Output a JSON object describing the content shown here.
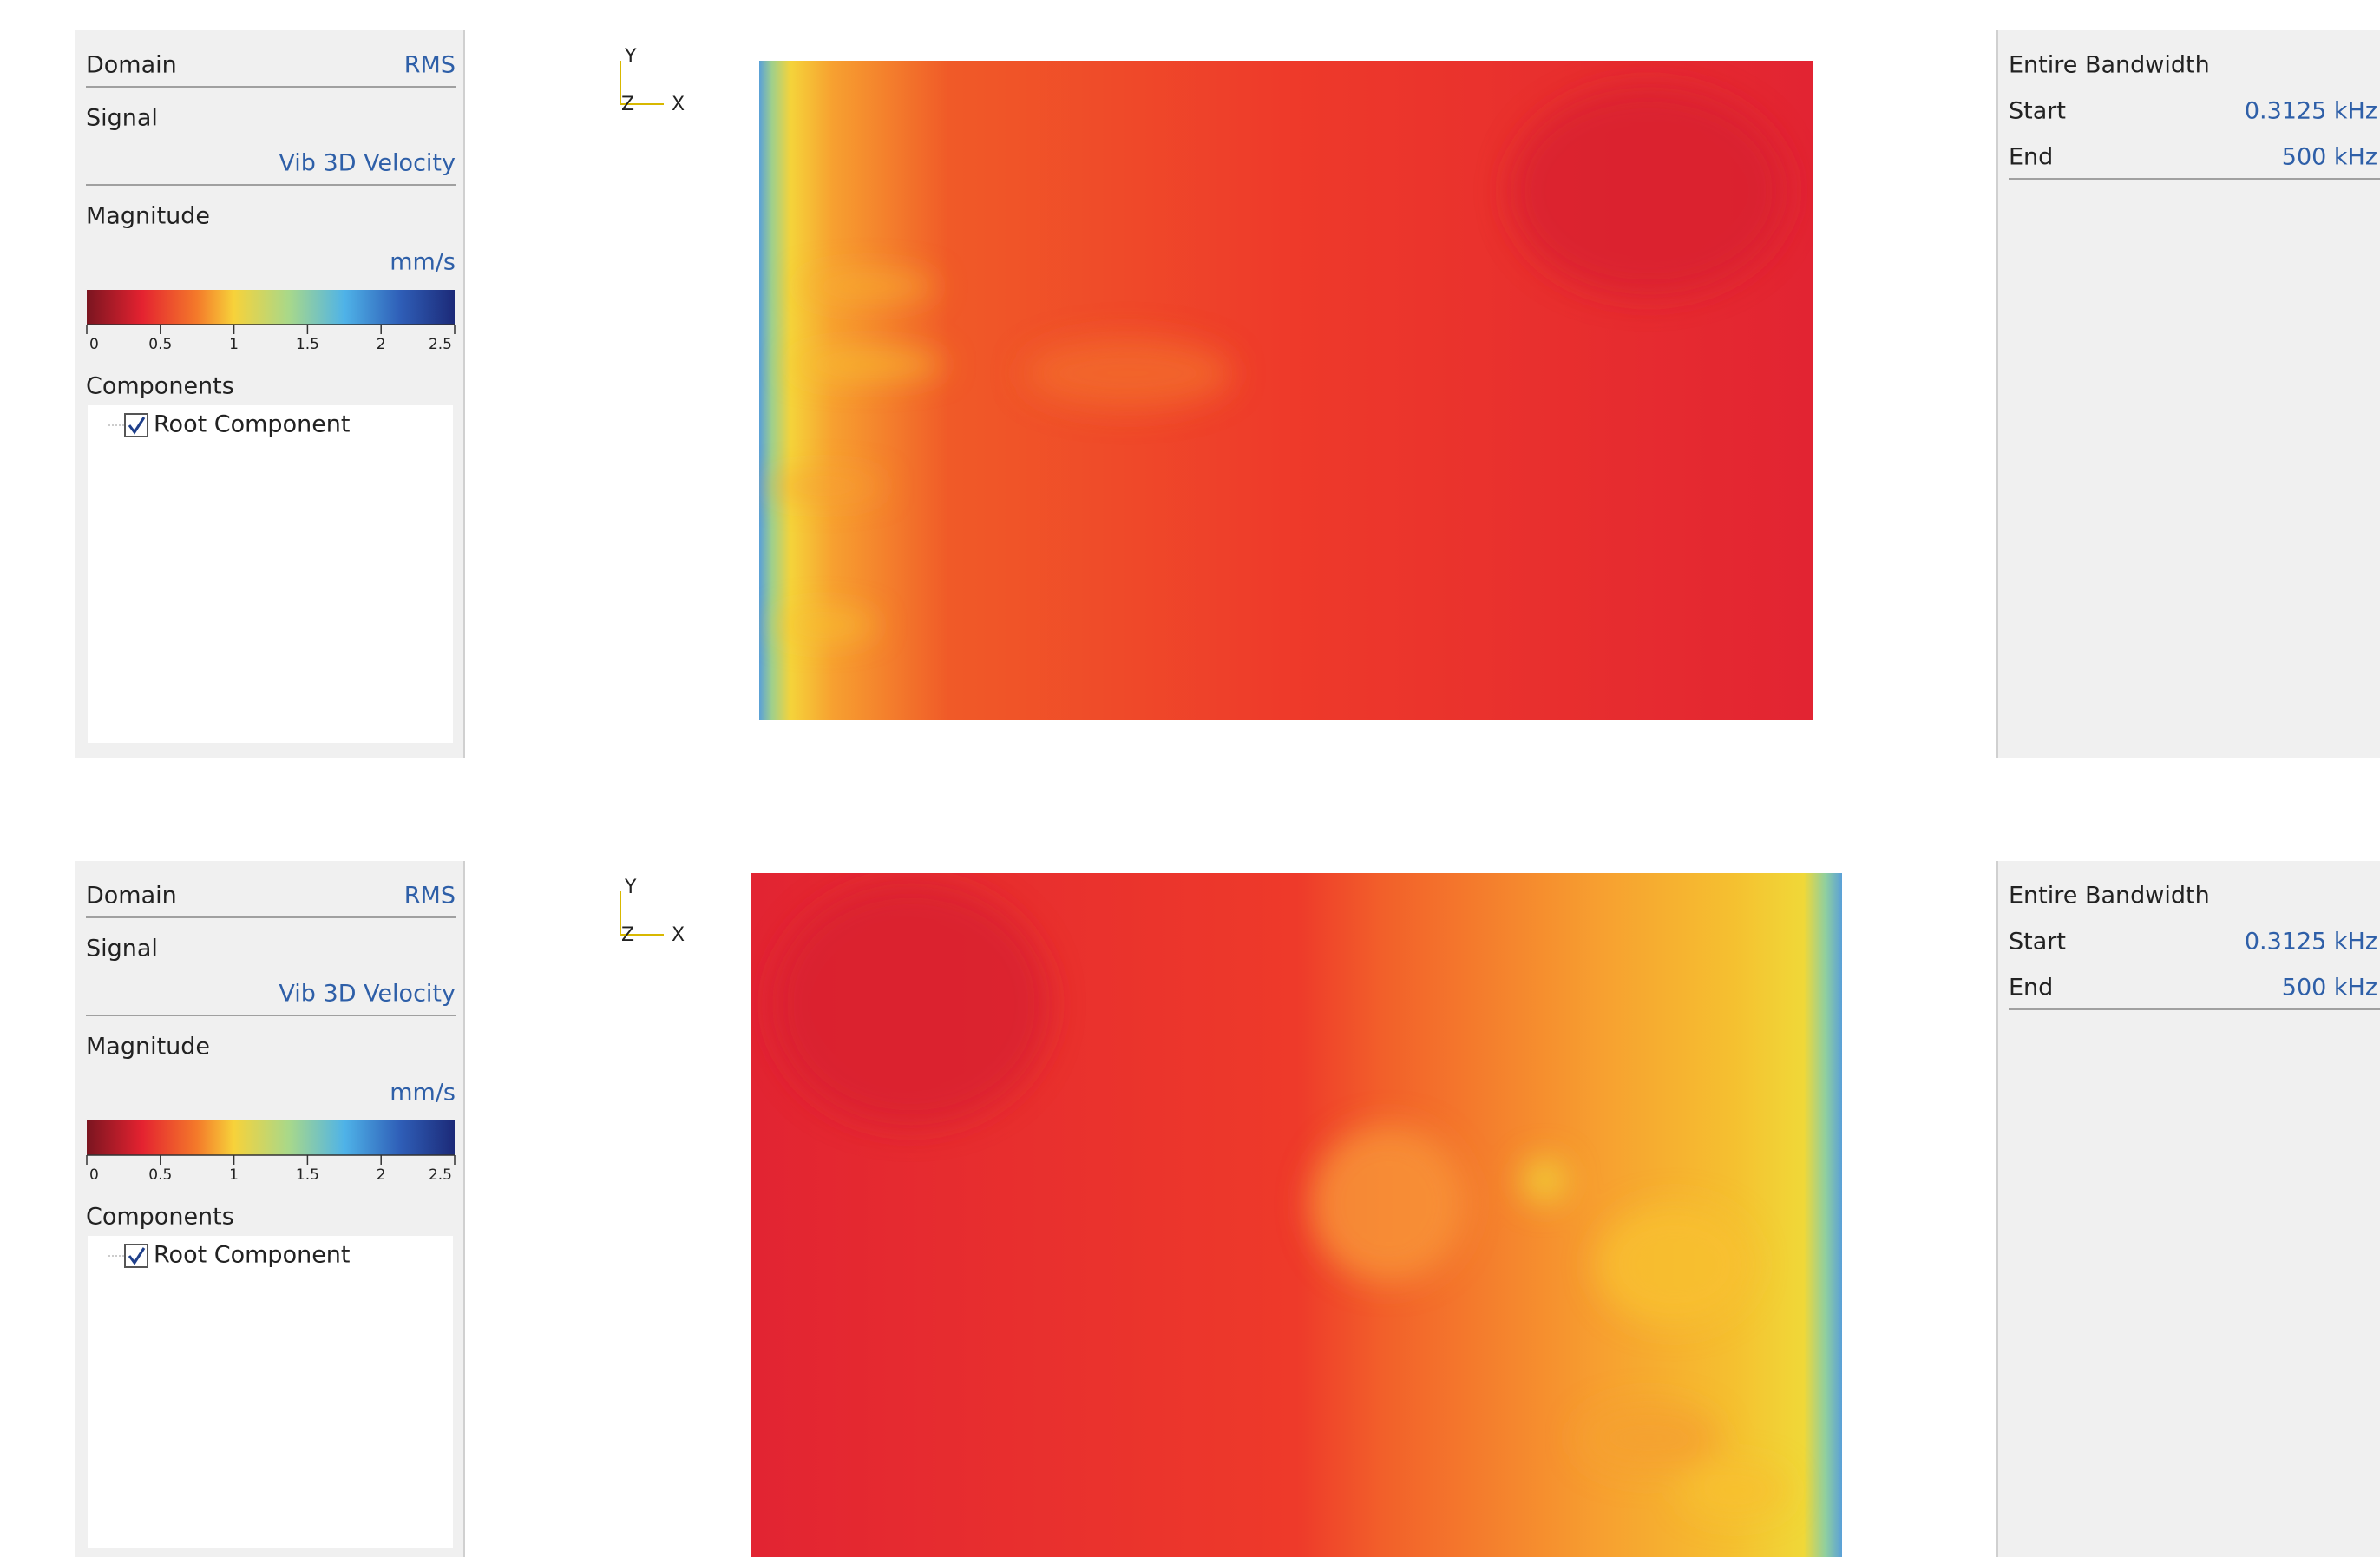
{
  "panels": [
    {
      "left": {
        "domain_label": "Domain",
        "domain_value": "RMS",
        "signal_label": "Signal",
        "signal_value": "Vib 3D Velocity",
        "magnitude_label": "Magnitude",
        "unit": "mm/s",
        "colorbar": {
          "range": [
            0,
            2.5
          ],
          "ticks": [
            0,
            0.5,
            1,
            1.5,
            2,
            2.5
          ]
        },
        "components_label": "Components",
        "component": "Root Component"
      },
      "axes": {
        "y": "Y",
        "z": "Z",
        "x": "X"
      },
      "right": {
        "bandwidth": "Entire Bandwidth",
        "start_label": "Start",
        "start_value": "0.3125 kHz",
        "end_label": "End",
        "end_value": "500 kHz"
      }
    },
    {
      "left": {
        "domain_label": "Domain",
        "domain_value": "RMS",
        "signal_label": "Signal",
        "signal_value": "Vib 3D Velocity",
        "magnitude_label": "Magnitude",
        "unit": "mm/s",
        "colorbar": {
          "range": [
            0,
            2.5
          ],
          "ticks": [
            0,
            0.5,
            1,
            1.5,
            2,
            2.5
          ]
        },
        "components_label": "Components",
        "component": "Root Component"
      },
      "axes": {
        "y": "Y",
        "z": "Z",
        "x": "X"
      },
      "right": {
        "bandwidth": "Entire Bandwidth",
        "start_label": "Start",
        "start_value": "0.3125 kHz",
        "end_label": "End",
        "end_value": "500 kHz"
      }
    }
  ]
}
